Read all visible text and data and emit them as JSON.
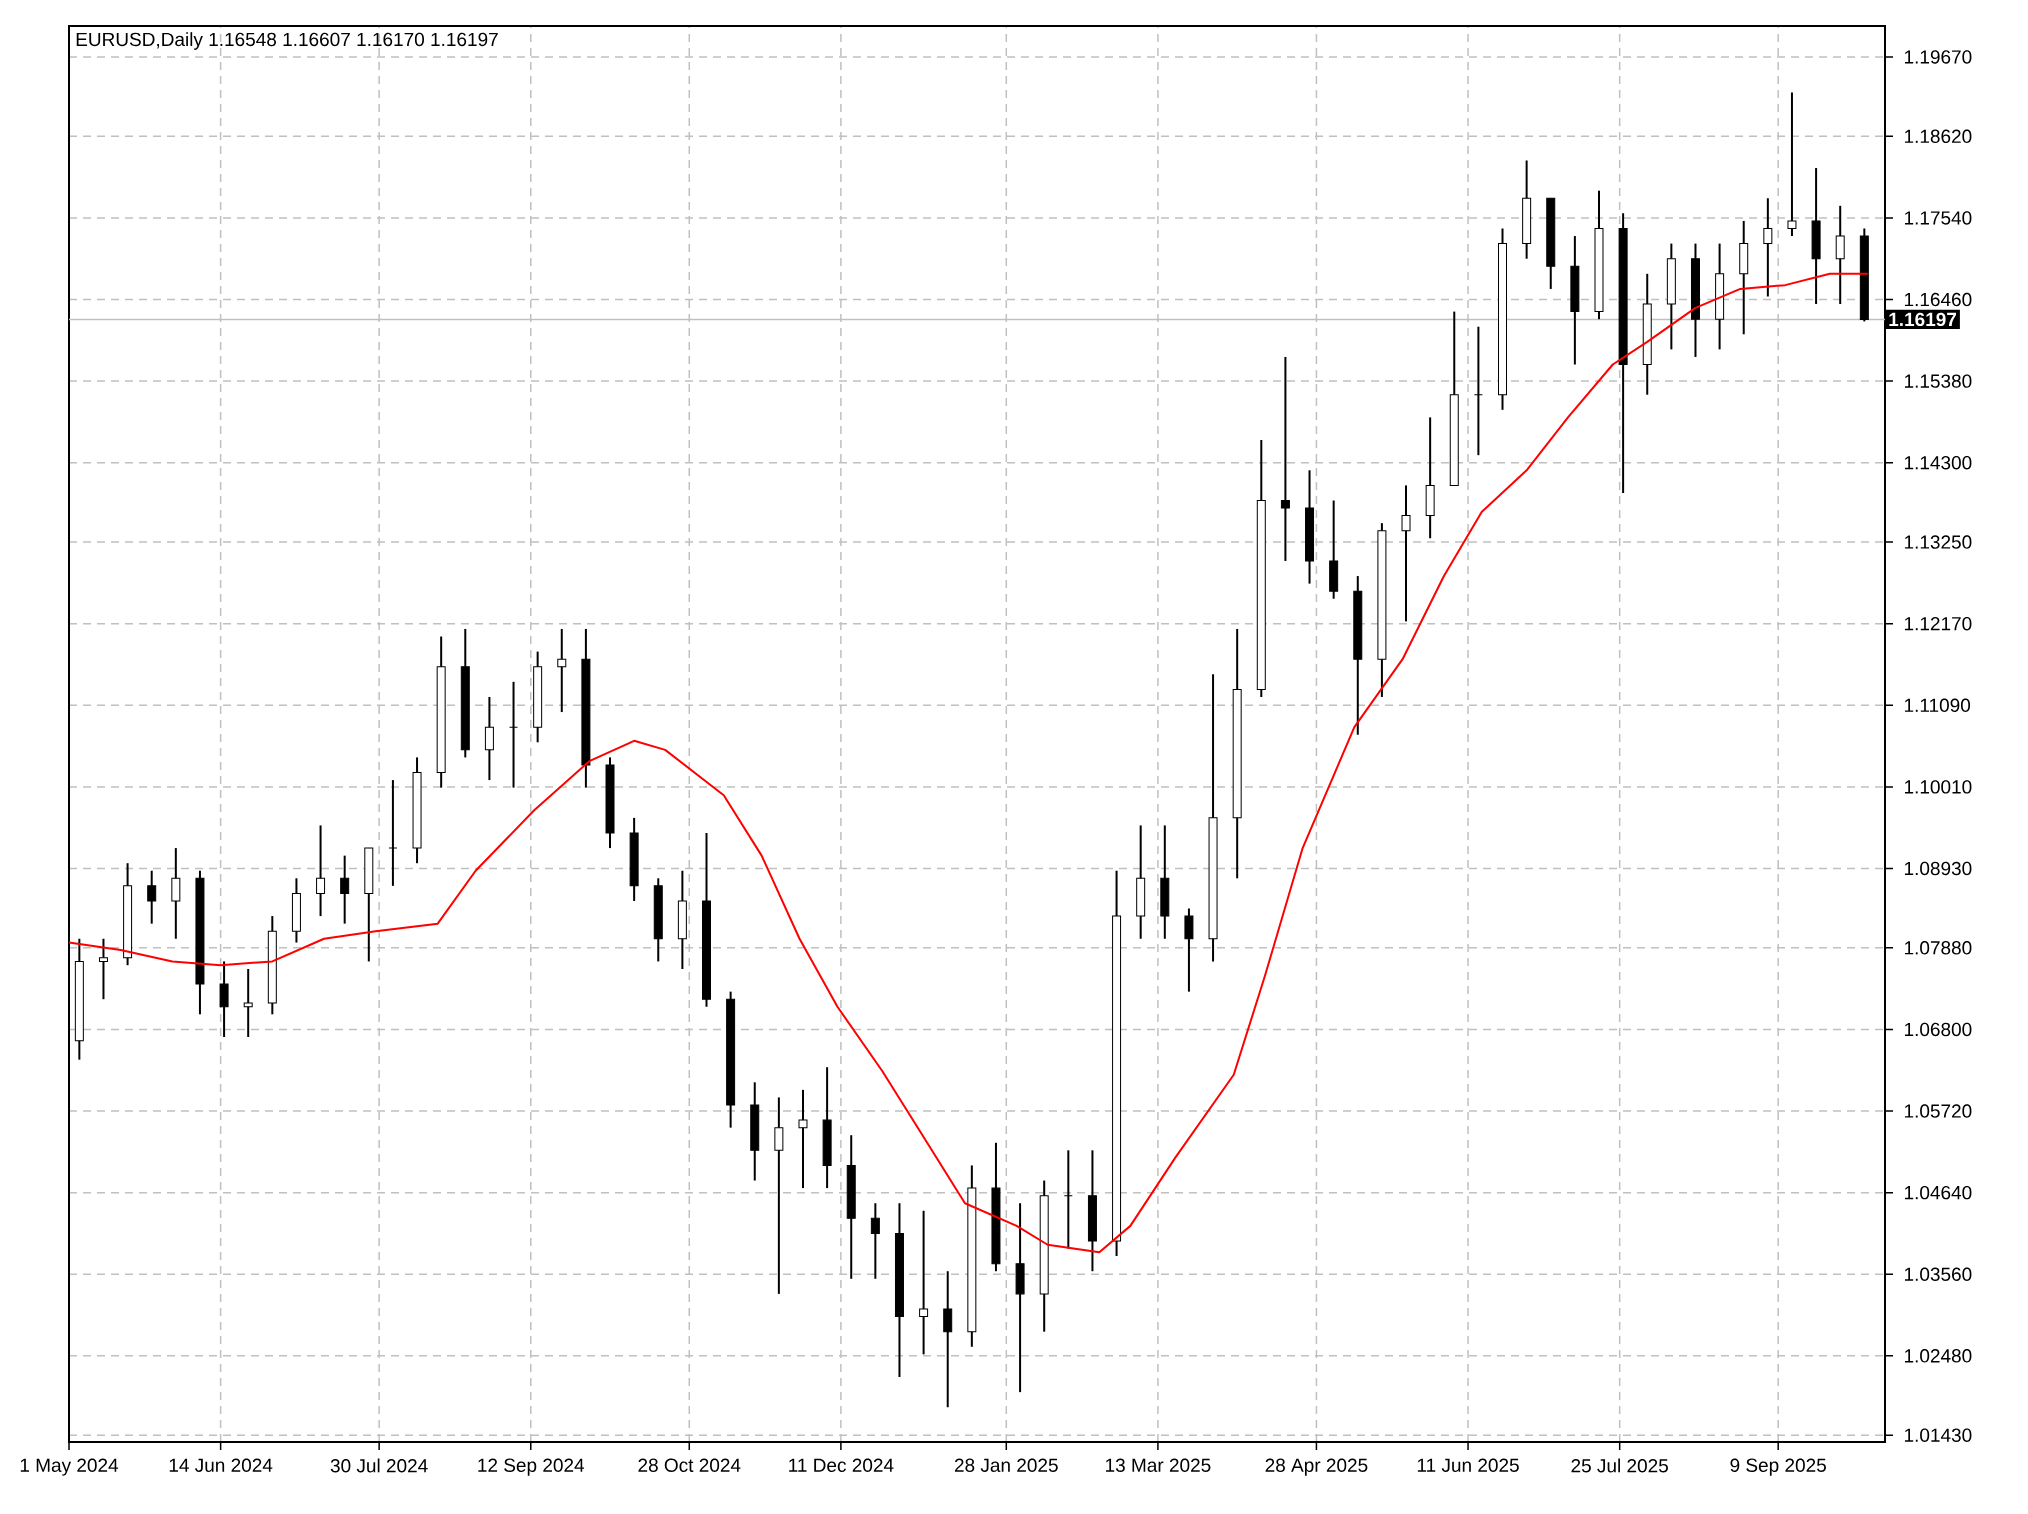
{
  "chart_data": {
    "type": "candlestick",
    "title": "EURUSD,Daily 1.16548 1.16607 1.16170 1.16197",
    "series": [
      {
        "color": "#000000",
        "x": [
          "2024-05-04",
          "2024-05-11",
          "2024-05-18",
          "2024-05-25",
          "2024-06-01",
          "2024-06-08",
          "2024-06-15",
          "2024-06-22",
          "2024-06-29",
          "2024-07-06",
          "2024-07-13",
          "2024-07-20",
          "2024-07-27",
          "2024-08-03",
          "2024-08-10",
          "2024-08-17",
          "2024-08-24",
          "2024-08-31",
          "2024-09-07",
          "2024-09-14",
          "2024-09-21",
          "2024-09-28",
          "2024-10-05",
          "2024-10-12",
          "2024-10-19",
          "2024-10-26",
          "2024-11-02",
          "2024-11-09",
          "2024-11-16",
          "2024-11-23",
          "2024-11-30",
          "2024-12-07",
          "2024-12-14",
          "2024-12-21",
          "2024-12-28",
          "2025-01-04",
          "2025-01-11",
          "2025-01-18",
          "2025-01-25",
          "2025-02-01",
          "2025-02-08",
          "2025-02-15",
          "2025-02-22",
          "2025-03-01",
          "2025-03-08",
          "2025-03-15",
          "2025-03-22",
          "2025-03-29",
          "2025-04-05",
          "2025-04-12",
          "2025-04-19",
          "2025-04-26",
          "2025-05-03",
          "2025-05-10",
          "2025-05-17",
          "2025-05-24",
          "2025-05-31",
          "2025-06-07",
          "2025-06-14",
          "2025-06-21",
          "2025-06-28",
          "2025-07-05",
          "2025-07-12",
          "2025-07-19",
          "2025-07-26",
          "2025-08-02",
          "2025-08-09",
          "2025-08-16",
          "2025-08-23",
          "2025-08-30",
          "2025-09-06",
          "2025-09-13",
          "2025-09-20",
          "2025-09-27",
          "2025-10-04"
        ],
        "ohlc": [
          [
            1.0665,
            1.08,
            1.064,
            1.077
          ],
          [
            1.077,
            1.08,
            1.072,
            1.0775
          ],
          [
            1.0775,
            1.09,
            1.0765,
            1.087
          ],
          [
            1.087,
            1.089,
            1.082,
            1.085
          ],
          [
            1.085,
            1.092,
            1.08,
            1.088
          ],
          [
            1.088,
            1.089,
            1.07,
            1.074
          ],
          [
            1.074,
            1.077,
            1.067,
            1.071
          ],
          [
            1.071,
            1.076,
            1.067,
            1.0715
          ],
          [
            1.0715,
            1.083,
            1.07,
            1.081
          ],
          [
            1.081,
            1.088,
            1.0795,
            1.086
          ],
          [
            1.086,
            1.095,
            1.083,
            1.088
          ],
          [
            1.088,
            1.091,
            1.082,
            1.086
          ],
          [
            1.086,
            1.092,
            1.077,
            1.092
          ],
          [
            1.092,
            1.101,
            1.087,
            1.092
          ],
          [
            1.092,
            1.104,
            1.09,
            1.102
          ],
          [
            1.102,
            1.12,
            1.1,
            1.116
          ],
          [
            1.116,
            1.121,
            1.104,
            1.105
          ],
          [
            1.105,
            1.112,
            1.101,
            1.108
          ],
          [
            1.108,
            1.114,
            1.1,
            1.108
          ],
          [
            1.108,
            1.118,
            1.106,
            1.116
          ],
          [
            1.116,
            1.121,
            1.11,
            1.117
          ],
          [
            1.117,
            1.121,
            1.1,
            1.103
          ],
          [
            1.103,
            1.104,
            1.092,
            1.094
          ],
          [
            1.094,
            1.096,
            1.085,
            1.087
          ],
          [
            1.087,
            1.088,
            1.077,
            1.08
          ],
          [
            1.08,
            1.089,
            1.076,
            1.085
          ],
          [
            1.085,
            1.094,
            1.071,
            1.072
          ],
          [
            1.072,
            1.073,
            1.055,
            1.058
          ],
          [
            1.058,
            1.061,
            1.048,
            1.052
          ],
          [
            1.052,
            1.059,
            1.033,
            1.055
          ],
          [
            1.055,
            1.06,
            1.047,
            1.056
          ],
          [
            1.056,
            1.063,
            1.047,
            1.05
          ],
          [
            1.05,
            1.054,
            1.035,
            1.043
          ],
          [
            1.043,
            1.045,
            1.035,
            1.041
          ],
          [
            1.041,
            1.045,
            1.022,
            1.03
          ],
          [
            1.03,
            1.044,
            1.025,
            1.031
          ],
          [
            1.031,
            1.036,
            1.018,
            1.028
          ],
          [
            1.028,
            1.05,
            1.026,
            1.047
          ],
          [
            1.047,
            1.053,
            1.036,
            1.037
          ],
          [
            1.037,
            1.045,
            1.02,
            1.033
          ],
          [
            1.033,
            1.048,
            1.028,
            1.046
          ],
          [
            1.046,
            1.052,
            1.039,
            1.046
          ],
          [
            1.046,
            1.052,
            1.036,
            1.04
          ],
          [
            1.04,
            1.089,
            1.038,
            1.083
          ],
          [
            1.083,
            1.095,
            1.08,
            1.088
          ],
          [
            1.088,
            1.095,
            1.08,
            1.083
          ],
          [
            1.083,
            1.084,
            1.073,
            1.08
          ],
          [
            1.08,
            1.115,
            1.077,
            1.096
          ],
          [
            1.096,
            1.121,
            1.088,
            1.113
          ],
          [
            1.113,
            1.146,
            1.112,
            1.138
          ],
          [
            1.138,
            1.157,
            1.13,
            1.137
          ],
          [
            1.137,
            1.142,
            1.127,
            1.13
          ],
          [
            1.13,
            1.138,
            1.125,
            1.126
          ],
          [
            1.126,
            1.128,
            1.107,
            1.117
          ],
          [
            1.117,
            1.135,
            1.112,
            1.134
          ],
          [
            1.134,
            1.14,
            1.122,
            1.136
          ],
          [
            1.136,
            1.149,
            1.133,
            1.14
          ],
          [
            1.14,
            1.163,
            1.14,
            1.152
          ],
          [
            1.152,
            1.161,
            1.144,
            1.152
          ],
          [
            1.152,
            1.174,
            1.15,
            1.172
          ],
          [
            1.172,
            1.183,
            1.17,
            1.178
          ],
          [
            1.178,
            1.178,
            1.166,
            1.169
          ],
          [
            1.169,
            1.173,
            1.156,
            1.163
          ],
          [
            1.163,
            1.179,
            1.162,
            1.174
          ],
          [
            1.174,
            1.176,
            1.139,
            1.156
          ],
          [
            1.156,
            1.168,
            1.152,
            1.164
          ],
          [
            1.164,
            1.172,
            1.158,
            1.17
          ],
          [
            1.17,
            1.172,
            1.157,
            1.162
          ],
          [
            1.162,
            1.172,
            1.158,
            1.168
          ],
          [
            1.168,
            1.175,
            1.16,
            1.172
          ],
          [
            1.172,
            1.178,
            1.165,
            1.174
          ],
          [
            1.174,
            1.192,
            1.173,
            1.175
          ],
          [
            1.175,
            1.182,
            1.164,
            1.17
          ],
          [
            1.17,
            1.177,
            1.164,
            1.173
          ],
          [
            1.173,
            1.174,
            1.1617,
            1.16197
          ]
        ]
      },
      {
        "type": "line",
        "color": "#ff0000",
        "x": [
          "2024-05-01",
          "2024-05-16",
          "2024-05-31",
          "2024-06-14",
          "2024-06-29",
          "2024-07-14",
          "2024-07-29",
          "2024-08-16",
          "2024-08-27",
          "2024-09-13",
          "2024-09-29",
          "2024-10-12",
          "2024-10-21",
          "2024-11-07",
          "2024-11-18",
          "2024-11-29",
          "2024-12-10",
          "2024-12-23",
          "2025-01-03",
          "2025-01-16",
          "2025-01-31",
          "2025-02-09",
          "2025-02-24",
          "2025-03-05",
          "2025-03-18",
          "2025-04-04",
          "2025-04-13",
          "2025-04-24",
          "2025-05-09",
          "2025-05-23",
          "2025-06-04",
          "2025-06-15",
          "2025-06-28",
          "2025-07-10",
          "2025-07-23",
          "2025-08-02",
          "2025-08-16",
          "2025-08-29",
          "2025-09-11",
          "2025-09-24",
          "2025-10-05"
        ],
        "values": [
          1.0795,
          1.0785,
          1.077,
          1.0765,
          1.077,
          1.08,
          1.081,
          1.082,
          1.089,
          1.097,
          1.1035,
          1.1062,
          1.105,
          1.099,
          1.091,
          1.08,
          1.071,
          1.0625,
          1.0545,
          1.045,
          1.042,
          1.0395,
          1.0385,
          1.042,
          1.051,
          1.062,
          1.075,
          1.092,
          1.108,
          1.117,
          1.128,
          1.1365,
          1.142,
          1.149,
          1.156,
          1.159,
          1.1635,
          1.166,
          1.1665,
          1.168,
          1.168
        ]
      }
    ],
    "xlim": [
      "2024-05-01",
      "2025-10-10"
    ],
    "xticks": [
      {
        "value": "2024-05-01",
        "label": "1 May 2024"
      },
      {
        "value": "2024-06-14",
        "label": "14 Jun 2024"
      },
      {
        "value": "2024-07-30",
        "label": "30 Jul 2024"
      },
      {
        "value": "2024-09-12",
        "label": "12 Sep 2024"
      },
      {
        "value": "2024-10-28",
        "label": "28 Oct 2024"
      },
      {
        "value": "2024-12-11",
        "label": "11 Dec 2024"
      },
      {
        "value": "2025-01-28",
        "label": "28 Jan 2025"
      },
      {
        "value": "2025-03-13",
        "label": "13 Mar 2025"
      },
      {
        "value": "2025-04-28",
        "label": "28 Apr 2025"
      },
      {
        "value": "2025-06-11",
        "label": "11 Jun 2025"
      },
      {
        "value": "2025-07-25",
        "label": "25 Jul 2025"
      },
      {
        "value": "2025-09-09",
        "label": "9 Sep 2025"
      }
    ],
    "ylim": [
      1.0134,
      1.2008
    ],
    "yticks": [
      {
        "value": 1.0143,
        "label": "1.01430"
      },
      {
        "value": 1.0248,
        "label": "1.02480"
      },
      {
        "value": 1.0356,
        "label": "1.03560"
      },
      {
        "value": 1.0464,
        "label": "1.04640"
      },
      {
        "value": 1.0572,
        "label": "1.05720"
      },
      {
        "value": 1.068,
        "label": "1.06800"
      },
      {
        "value": 1.0788,
        "label": "1.07880"
      },
      {
        "value": 1.0893,
        "label": "1.08930"
      },
      {
        "value": 1.1001,
        "label": "1.10010"
      },
      {
        "value": 1.1109,
        "label": "1.11090"
      },
      {
        "value": 1.1217,
        "label": "1.12170"
      },
      {
        "value": 1.1325,
        "label": "1.13250"
      },
      {
        "value": 1.143,
        "label": "1.14300"
      },
      {
        "value": 1.1538,
        "label": "1.15380"
      },
      {
        "value": 1.1646,
        "label": "1.16460"
      },
      {
        "value": 1.1754,
        "label": "1.17540"
      },
      {
        "value": 1.1862,
        "label": "1.18620"
      },
      {
        "value": 1.1967,
        "label": "1.19670"
      }
    ],
    "grid": true,
    "ref_lines": [
      {
        "axis": "y",
        "value": 1.16197,
        "label": "1.16197",
        "color": "#c0c0c0"
      }
    ]
  }
}
